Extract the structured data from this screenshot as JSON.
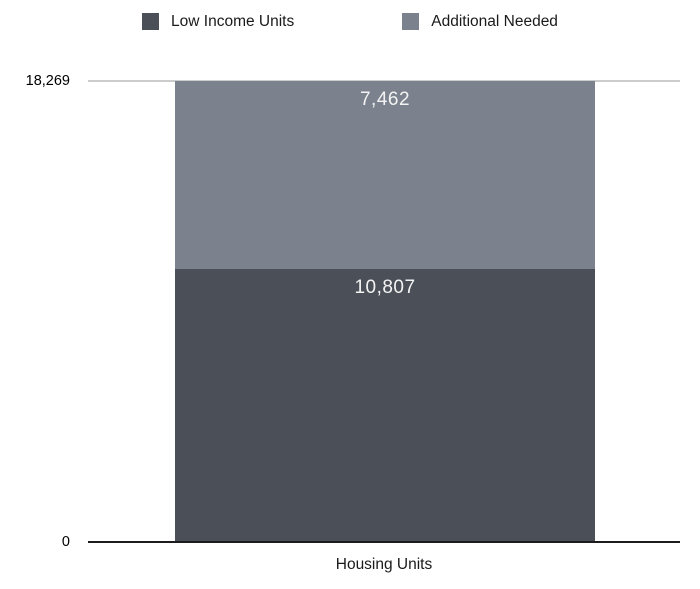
{
  "chart_data": {
    "type": "bar",
    "stacked": true,
    "categories": [
      "Housing Units"
    ],
    "series": [
      {
        "name": "Low Income Units",
        "values": [
          10807
        ],
        "label": "10,807",
        "color": "#4b5058",
        "stack_order": "bottom"
      },
      {
        "name": "Additional Needed",
        "values": [
          7462
        ],
        "label": "7,462",
        "color": "#7b828e",
        "stack_order": "top"
      }
    ],
    "title": "",
    "xlabel": "Housing Units",
    "ylabel": "",
    "ylim": [
      0,
      18269
    ],
    "yticks": [
      "0",
      "18,269"
    ],
    "stack_total": 18269,
    "legend_position": "top",
    "grid": "single top gridline at y-max",
    "value_label_color": "#f3f3f3",
    "gridline_color": "#cccccc",
    "axis_color": "#1c1c1c"
  }
}
